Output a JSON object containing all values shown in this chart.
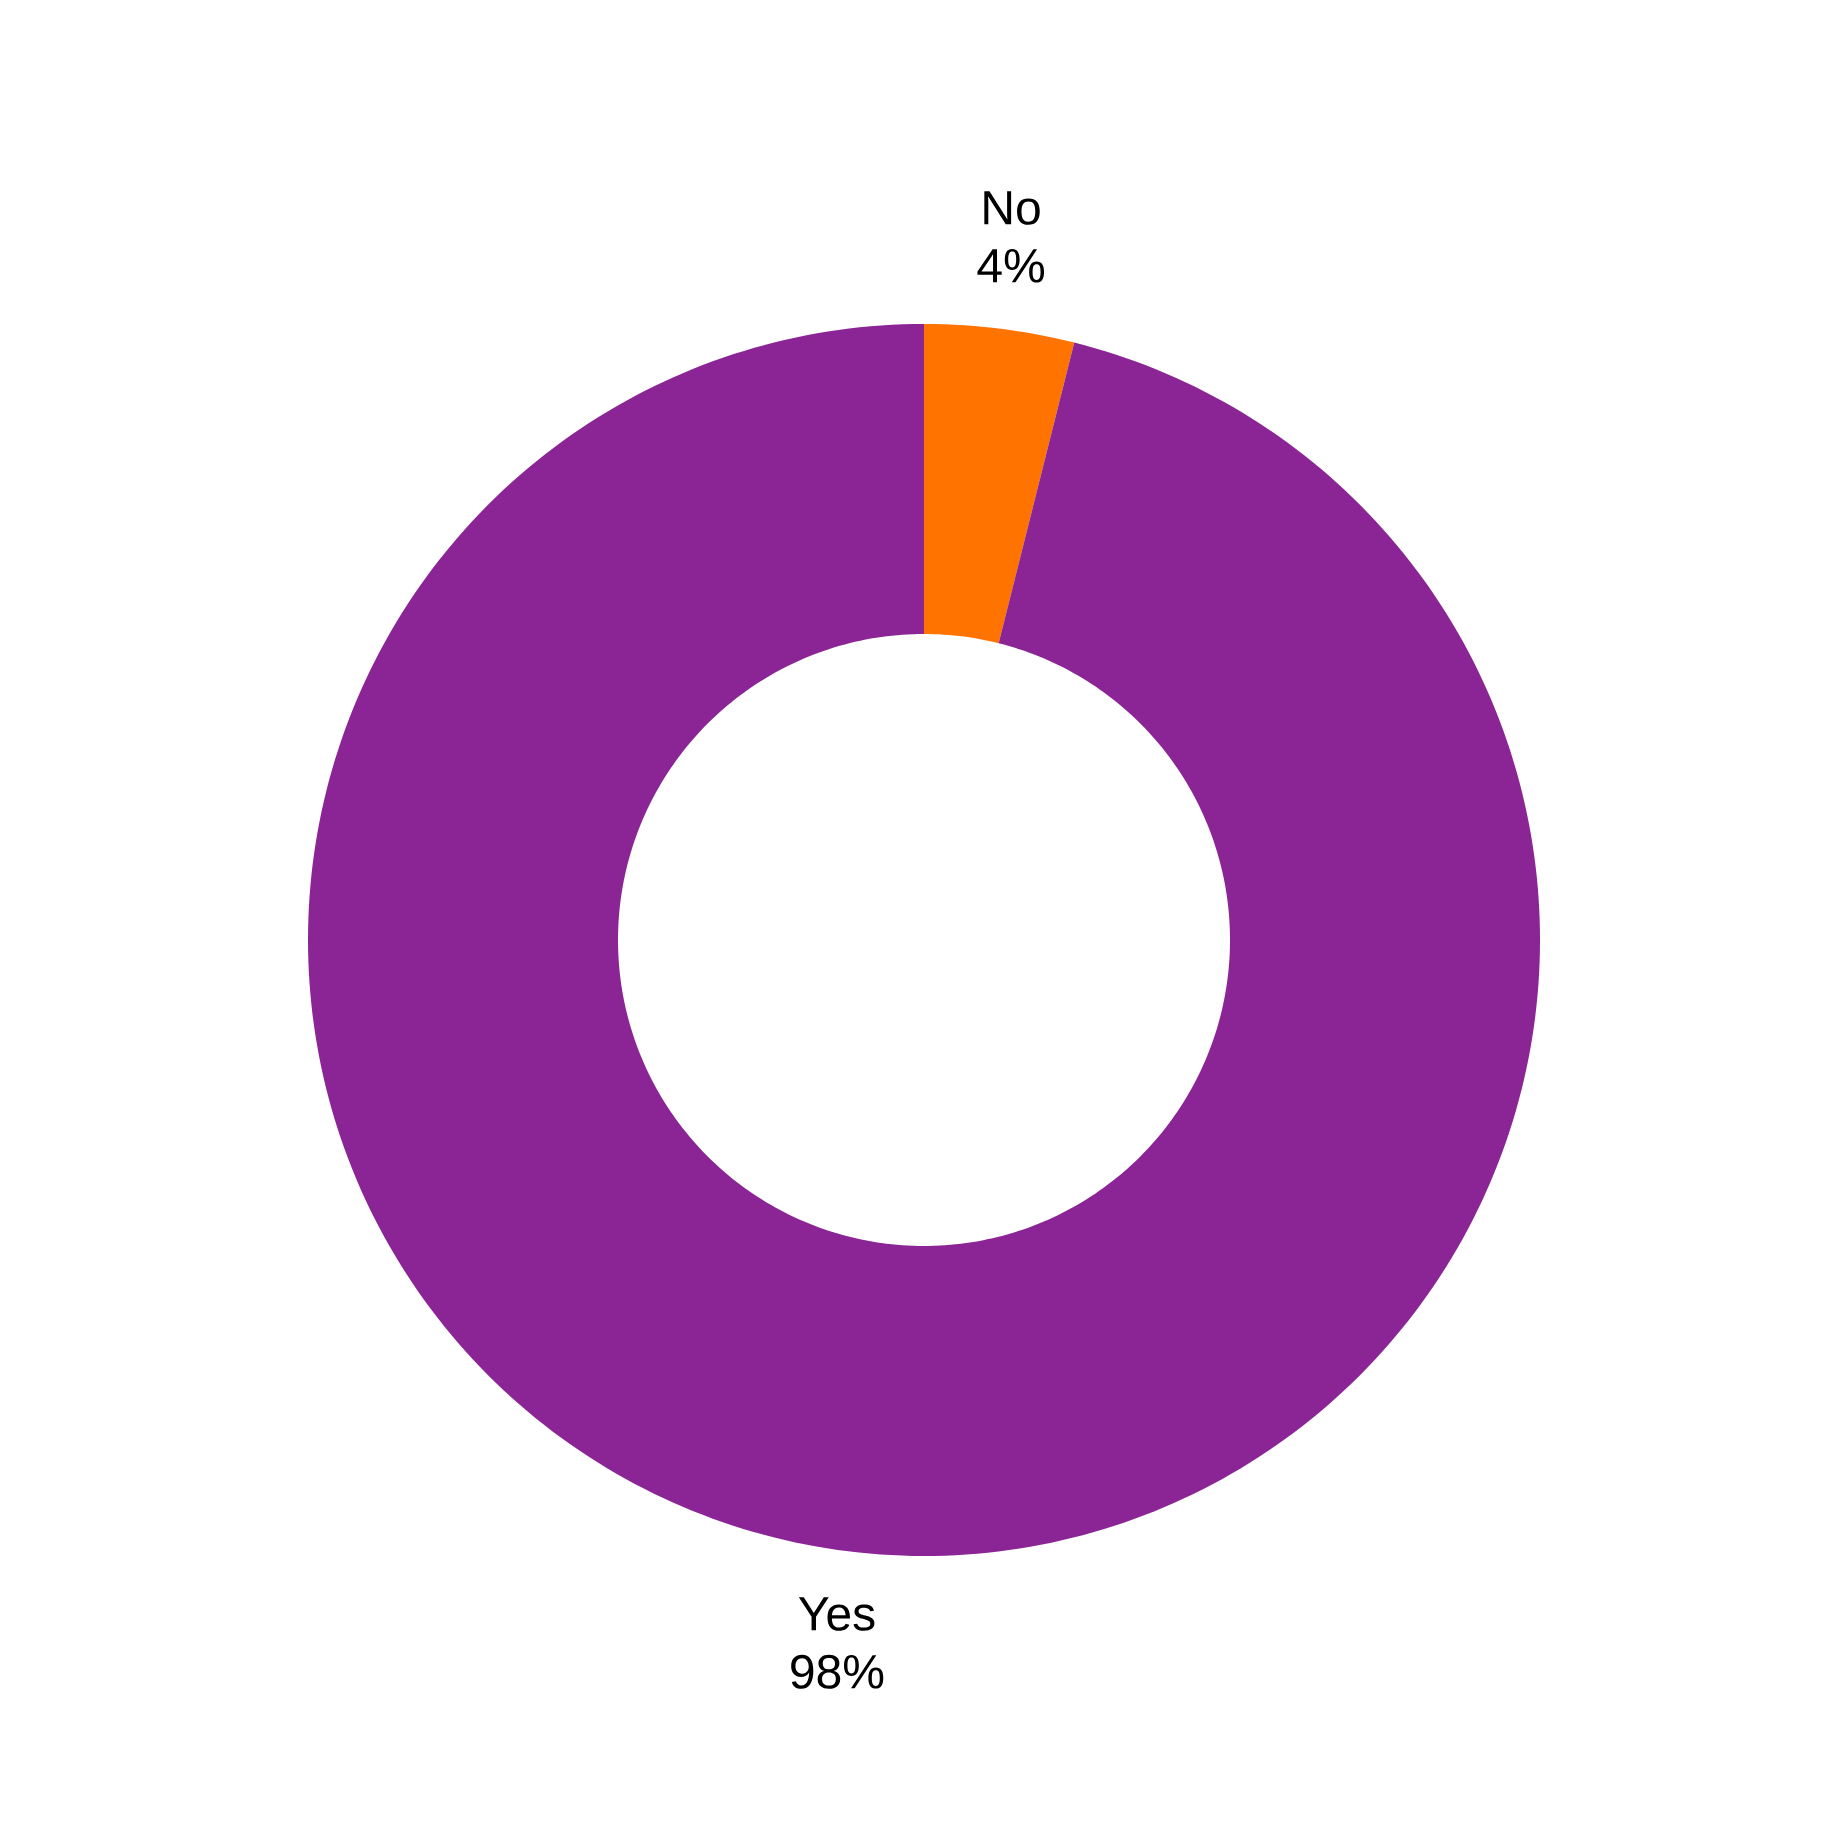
{
  "chart_data": {
    "type": "donut",
    "categories": [
      "No",
      "Yes"
    ],
    "values": [
      4,
      98
    ],
    "colors": [
      "#ff7300",
      "#8b2595"
    ],
    "value_labels": [
      "4%",
      "98%"
    ]
  }
}
